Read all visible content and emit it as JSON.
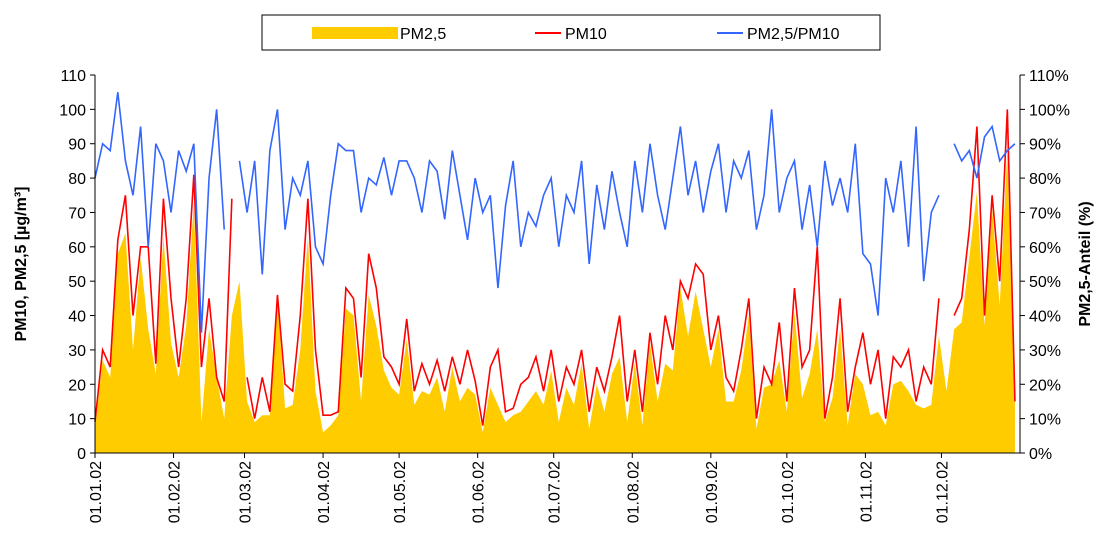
{
  "chart_data": {
    "type": "line",
    "y_label": "PM10, PM2,5 [µg/m³]",
    "y2_label": "PM2,5-Anteil (%)",
    "x": [
      0,
      3,
      6,
      9,
      12,
      15,
      18,
      21,
      24,
      27,
      30,
      33,
      36,
      39,
      42,
      45,
      48,
      51,
      54,
      57,
      60,
      63,
      66,
      69,
      72,
      75,
      78,
      81,
      84,
      87,
      90,
      93,
      96,
      99,
      102,
      105,
      108,
      111,
      114,
      117,
      120,
      123,
      126,
      129,
      132,
      135,
      138,
      141,
      144,
      147,
      150,
      153,
      156,
      159,
      162,
      165,
      168,
      171,
      174,
      177,
      180,
      183,
      186,
      189,
      192,
      195,
      198,
      201,
      204,
      207,
      210,
      213,
      216,
      219,
      222,
      225,
      228,
      231,
      234,
      237,
      240,
      243,
      246,
      249,
      252,
      255,
      258,
      261,
      264,
      267,
      270,
      273,
      276,
      279,
      282,
      285,
      288,
      291,
      294,
      297,
      300,
      303,
      306,
      309,
      312,
      315,
      318,
      321,
      324,
      327,
      330,
      333,
      336,
      339,
      342,
      345,
      348,
      351,
      354,
      357,
      360,
      363
    ],
    "xlim": [
      0,
      365
    ],
    "xticks": [
      {
        "value": 0,
        "label": "01.01.02"
      },
      {
        "value": 31,
        "label": "01.02.02"
      },
      {
        "value": 59,
        "label": "01.03.02"
      },
      {
        "value": 90,
        "label": "01.04.02"
      },
      {
        "value": 120,
        "label": "01.05.02"
      },
      {
        "value": 151,
        "label": "01.06.02"
      },
      {
        "value": 181,
        "label": "01.07.02"
      },
      {
        "value": 212,
        "label": "01.08.02"
      },
      {
        "value": 243,
        "label": "01.09.02"
      },
      {
        "value": 273,
        "label": "01.10.02"
      },
      {
        "value": 304,
        "label": "01.11.02"
      },
      {
        "value": 334,
        "label": "01.12.02"
      }
    ],
    "ylim": [
      0,
      110
    ],
    "yticks": [
      0,
      10,
      20,
      30,
      40,
      50,
      60,
      70,
      80,
      90,
      100,
      110
    ],
    "y2lim": [
      0,
      110
    ],
    "y2ticks": [
      {
        "value": 0,
        "label": "0%"
      },
      {
        "value": 10,
        "label": "10%"
      },
      {
        "value": 20,
        "label": "20%"
      },
      {
        "value": 30,
        "label": "30%"
      },
      {
        "value": 40,
        "label": "40%"
      },
      {
        "value": 50,
        "label": "50%"
      },
      {
        "value": 60,
        "label": "60%"
      },
      {
        "value": 70,
        "label": "70%"
      },
      {
        "value": 80,
        "label": "80%"
      },
      {
        "value": 90,
        "label": "90%"
      },
      {
        "value": 100,
        "label": "100%"
      },
      {
        "value": 110,
        "label": "110%"
      }
    ],
    "legend": "top",
    "series": [
      {
        "name": "PM2,5",
        "kind": "area",
        "color": "#ffcc00",
        "values": [
          7,
          27,
          22,
          58,
          64,
          30,
          57,
          36,
          23,
          63,
          32,
          22,
          37,
          73,
          9,
          36,
          22,
          10,
          40,
          50,
          15,
          9,
          11,
          11,
          46,
          13,
          14,
          30,
          63,
          18,
          6,
          8,
          11,
          42,
          40,
          15,
          46,
          37,
          24,
          19,
          17,
          33,
          14,
          18,
          17,
          22,
          12,
          25,
          15,
          19,
          17,
          6,
          19,
          14,
          9,
          11,
          12,
          15,
          18,
          14,
          24,
          9,
          19,
          14,
          26,
          7,
          20,
          12,
          23,
          28,
          9,
          26,
          8,
          32,
          15,
          26,
          24,
          48,
          34,
          47,
          36,
          25,
          36,
          15,
          15,
          24,
          40,
          7,
          19,
          20,
          27,
          12,
          41,
          16,
          23,
          36,
          9,
          16,
          36,
          8,
          23,
          20,
          11,
          12,
          8,
          20,
          21,
          18,
          14,
          13,
          14,
          34,
          18,
          36,
          38,
          57,
          76,
          37,
          71,
          43,
          88,
          14
        ]
      },
      {
        "name": "PM10",
        "kind": "line",
        "color": "#ff0000",
        "values": [
          9,
          30,
          25,
          62,
          75,
          40,
          60,
          60,
          26,
          74,
          45,
          25,
          45,
          81,
          25,
          45,
          22,
          15,
          74,
          null,
          22,
          10,
          22,
          12,
          46,
          20,
          18,
          40,
          74,
          30,
          11,
          11,
          12,
          48,
          45,
          22,
          58,
          48,
          28,
          25,
          20,
          39,
          18,
          26,
          20,
          27,
          18,
          28,
          20,
          30,
          21,
          8,
          25,
          30,
          12,
          13,
          20,
          22,
          28,
          18,
          30,
          15,
          25,
          20,
          30,
          12,
          25,
          18,
          28,
          40,
          15,
          30,
          12,
          35,
          20,
          40,
          30,
          50,
          45,
          55,
          52,
          30,
          40,
          22,
          18,
          30,
          45,
          10,
          25,
          20,
          38,
          15,
          48,
          25,
          30,
          60,
          10,
          22,
          45,
          12,
          25,
          35,
          20,
          30,
          10,
          28,
          25,
          30,
          15,
          25,
          20,
          45,
          null,
          40,
          45,
          65,
          95,
          40,
          75,
          50,
          100,
          15
        ]
      },
      {
        "name": "PM2,5/PM10",
        "kind": "line",
        "axis": "y2",
        "color": "#3366ff",
        "values": [
          80,
          90,
          88,
          105,
          85,
          75,
          95,
          60,
          90,
          85,
          70,
          88,
          82,
          90,
          35,
          80,
          100,
          65,
          null,
          85,
          70,
          85,
          52,
          88,
          100,
          65,
          80,
          75,
          85,
          60,
          55,
          75,
          90,
          88,
          88,
          70,
          80,
          78,
          86,
          75,
          85,
          85,
          80,
          70,
          85,
          82,
          68,
          88,
          75,
          62,
          80,
          70,
          75,
          48,
          72,
          85,
          60,
          70,
          66,
          75,
          80,
          60,
          75,
          70,
          85,
          55,
          78,
          65,
          82,
          70,
          60,
          85,
          70,
          90,
          75,
          65,
          80,
          95,
          75,
          85,
          70,
          82,
          90,
          70,
          85,
          80,
          88,
          65,
          75,
          100,
          70,
          80,
          85,
          65,
          78,
          60,
          85,
          72,
          80,
          70,
          90,
          58,
          55,
          40,
          80,
          70,
          85,
          60,
          95,
          50,
          70,
          75,
          null,
          90,
          85,
          88,
          80,
          92,
          95,
          85,
          88,
          90
        ]
      }
    ]
  }
}
